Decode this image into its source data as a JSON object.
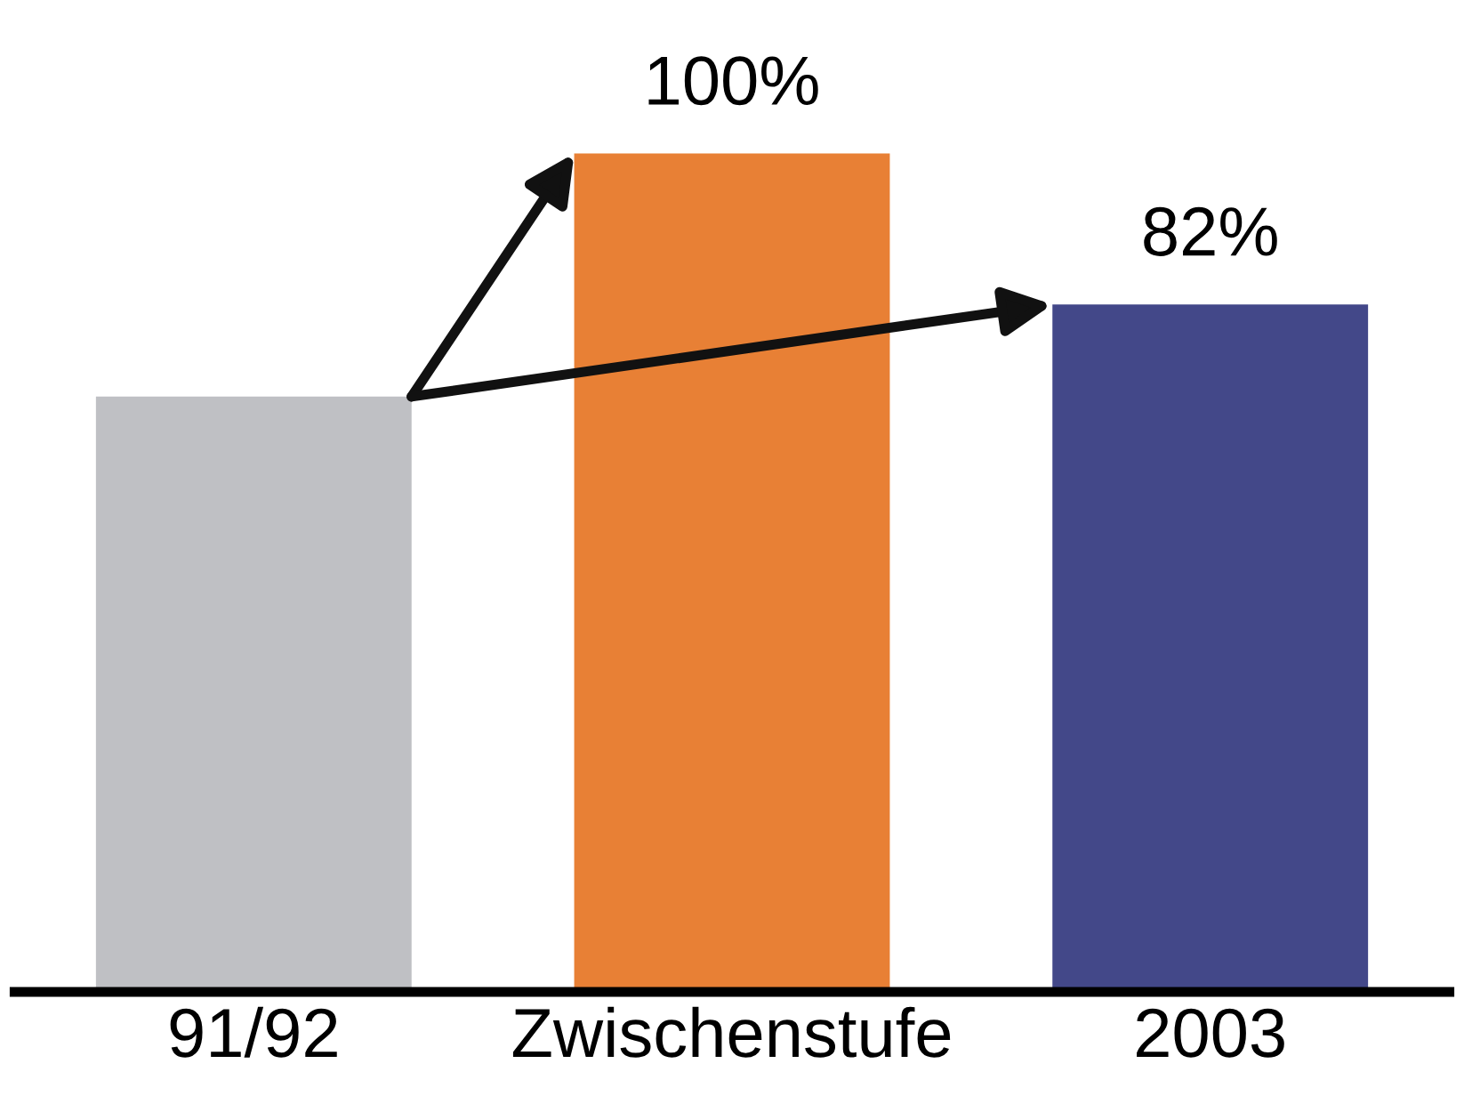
{
  "chart_data": {
    "type": "bar",
    "categories": [
      "91/92",
      "Zwischenstufe",
      "2003"
    ],
    "values": [
      71,
      100,
      82
    ],
    "colors": [
      "#bfc0c4",
      "#e88035",
      "#434889"
    ],
    "value_labels": [
      null,
      "100%",
      "82%"
    ],
    "grid": false,
    "legend": false
  }
}
